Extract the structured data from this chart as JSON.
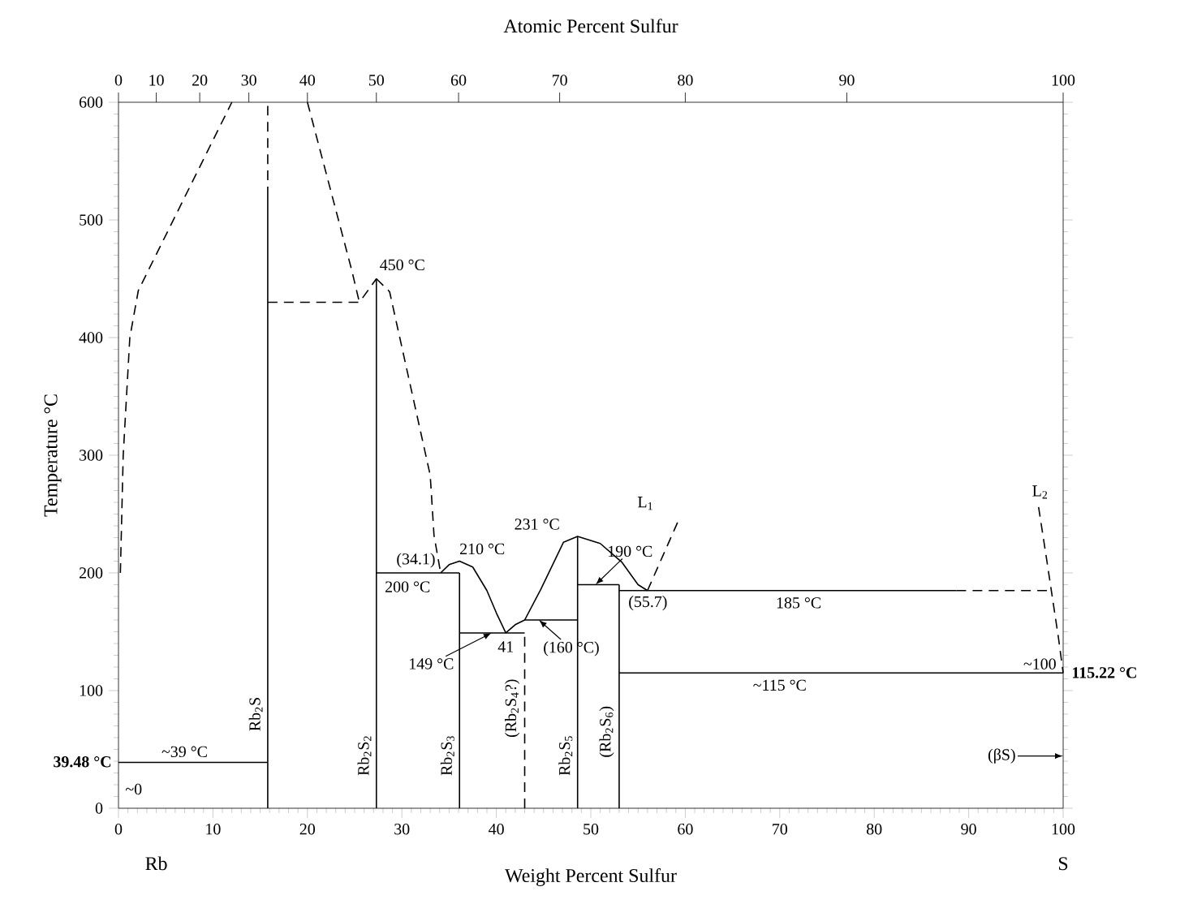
{
  "chart_data": {
    "type": "line",
    "xlabel": "Weight Percent Sulfur",
    "ylabel": "Temperature °C",
    "x2label": "Atomic Percent Sulfur",
    "xlim": [
      0,
      100
    ],
    "ylim": [
      0,
      600
    ],
    "xticks": [
      0,
      10,
      20,
      30,
      40,
      50,
      60,
      70,
      80,
      90,
      100
    ],
    "yticks": [
      0,
      100,
      200,
      300,
      400,
      500,
      600
    ],
    "grid": false,
    "marker": "none",
    "series": [
      {
        "color": "#000000",
        "line_style": "dashed",
        "x": [
          0.2,
          0.5,
          1.2,
          2.1,
          12.0
        ],
        "values": [
          200,
          300,
          400,
          440,
          600
        ]
      },
      {
        "color": "#000000",
        "line_style": "solid",
        "x": [
          15.8,
          15.8
        ],
        "values": [
          0,
          520
        ]
      },
      {
        "color": "#000000",
        "line_style": "dashed",
        "x": [
          15.8,
          15.8
        ],
        "values": [
          520,
          600
        ]
      },
      {
        "color": "#000000",
        "line_style": "solid",
        "x": [
          0,
          15.8
        ],
        "values": [
          39,
          39
        ]
      },
      {
        "color": "#000000",
        "line_style": "dashed",
        "x": [
          15.8,
          25.5,
          27.3
        ],
        "values": [
          430,
          430,
          450
        ]
      },
      {
        "color": "#000000",
        "line_style": "dashed",
        "x": [
          20.0,
          24.7,
          25.5
        ],
        "values": [
          600,
          457,
          430
        ]
      },
      {
        "color": "#000000",
        "line_style": "dashed",
        "x": [
          27.3,
          28.7,
          33.0,
          33.4,
          34.1
        ],
        "values": [
          450,
          439,
          283,
          232,
          200
        ]
      },
      {
        "color": "#000000",
        "line_style": "solid",
        "x": [
          27.3,
          27.3
        ],
        "values": [
          0,
          450
        ]
      },
      {
        "color": "#000000",
        "line_style": "solid",
        "x": [
          27.3,
          36.1
        ],
        "values": [
          200,
          200
        ]
      },
      {
        "color": "#000000",
        "line_style": "solid",
        "x": [
          36.1,
          36.1
        ],
        "values": [
          0,
          200
        ]
      },
      {
        "color": "#000000",
        "line_style": "solid",
        "x": [
          34.1,
          35.0,
          36.1,
          37.5,
          39.0,
          40.0,
          41.0
        ],
        "values": [
          200,
          207,
          210,
          205,
          185,
          166,
          149
        ]
      },
      {
        "color": "#000000",
        "line_style": "solid",
        "x": [
          36.1,
          43.0
        ],
        "values": [
          149,
          149
        ]
      },
      {
        "color": "#000000",
        "line_style": "dashed",
        "x": [
          43.0,
          43.0
        ],
        "values": [
          0,
          149
        ]
      },
      {
        "color": "#000000",
        "line_style": "solid",
        "x": [
          41.0,
          42.0,
          43.0,
          44.7,
          47.1,
          48.6,
          51.0,
          53.3,
          55.0,
          56.0
        ],
        "values": [
          149,
          156,
          160,
          186,
          226,
          231,
          225,
          209,
          190,
          185
        ]
      },
      {
        "color": "#000000",
        "line_style": "solid",
        "x": [
          43.0,
          48.6
        ],
        "values": [
          160,
          160
        ]
      },
      {
        "color": "#000000",
        "line_style": "solid",
        "x": [
          48.6,
          48.6
        ],
        "values": [
          0,
          231
        ]
      },
      {
        "color": "#000000",
        "line_style": "solid",
        "x": [
          48.6,
          53.0
        ],
        "values": [
          190,
          190
        ]
      },
      {
        "color": "#000000",
        "line_style": "solid",
        "x": [
          53.0,
          53.0
        ],
        "values": [
          0,
          190
        ]
      },
      {
        "color": "#000000",
        "line_style": "solid",
        "x": [
          53.0,
          88.7
        ],
        "values": [
          185,
          185
        ]
      },
      {
        "color": "#000000",
        "line_style": "dashed",
        "x": [
          88.7,
          98.8
        ],
        "values": [
          185,
          185
        ]
      },
      {
        "color": "#000000",
        "line_style": "solid",
        "x": [
          53.0,
          100
        ],
        "values": [
          115,
          115
        ]
      },
      {
        "color": "#000000",
        "line_style": "dashed",
        "x": [
          56.0,
          59.3
        ],
        "values": [
          185,
          245
        ]
      },
      {
        "color": "#000000",
        "line_style": "dashed",
        "x": [
          97.4,
          98.3,
          99.5,
          100
        ],
        "values": [
          256,
          209,
          145,
          115
        ]
      }
    ],
    "annotations": [
      {
        "text": "450 °C",
        "x": 27.3,
        "y": 450
      },
      {
        "text": "210 °C",
        "x": 36.1,
        "y": 210
      },
      {
        "text": "231 °C",
        "x": 48.6,
        "y": 231
      },
      {
        "text": "190 °C",
        "x": 50.5,
        "y": 190
      },
      {
        "text": "200 °C",
        "x": 27.3,
        "y": 200
      },
      {
        "text": "149 °C",
        "x": 39.5,
        "y": 149
      },
      {
        "text": "41",
        "x": 41,
        "y": 149
      },
      {
        "text": "(34.1)",
        "x": 34.1,
        "y": 200
      },
      {
        "text": "(160 °C)",
        "x": 44.5,
        "y": 160
      },
      {
        "text": "(55.7)",
        "x": 55.7,
        "y": 185
      },
      {
        "text": "185 °C",
        "x": 72,
        "y": 185
      },
      {
        "text": "~115 °C",
        "x": 70,
        "y": 115
      },
      {
        "text": "~100",
        "x": 100,
        "y": 115
      },
      {
        "text": "~39 °C",
        "x": 7,
        "y": 39
      },
      {
        "text": "~0",
        "x": 0,
        "y": 39
      },
      {
        "text": "39.48 °C",
        "x": 0,
        "y": 39.48
      },
      {
        "text": "115.22 °C",
        "x": 100,
        "y": 115.22
      },
      "(βS)",
      "L$_{1}$",
      {
        "text": "L$_{2}$",
        "x": 97.4,
        "y": 256
      },
      {
        "text": "Rb$_{2}$S",
        "x": 15.8,
        "y": 80
      },
      {
        "text": "Rb$_{2}$S$_{2}$",
        "x": 27.3,
        "y": 45
      },
      {
        "text": "Rb$_{2}$S$_{3}$",
        "x": 36.1,
        "y": 45
      },
      {
        "text": "(Rb$_{2}$S$_{4}$?)",
        "x": 43.0,
        "y": 85
      },
      {
        "text": "Rb$_{2}$S$_{5}$",
        "x": 48.6,
        "y": 45
      },
      {
        "text": "(Rb$_{2}$S$_{6}$)",
        "x": 53.0,
        "y": 65
      },
      "Rb",
      "S",
      "0",
      "10",
      "20",
      "30",
      "40",
      "50",
      "60",
      "70",
      "80",
      "90",
      "100"
    ]
  }
}
